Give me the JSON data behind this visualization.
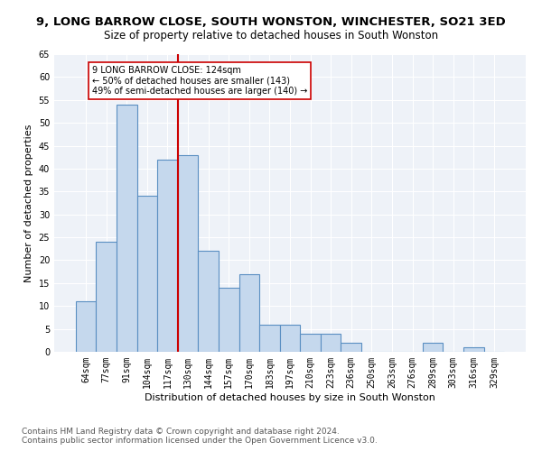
{
  "title": "9, LONG BARROW CLOSE, SOUTH WONSTON, WINCHESTER, SO21 3ED",
  "subtitle": "Size of property relative to detached houses in South Wonston",
  "xlabel": "Distribution of detached houses by size in South Wonston",
  "ylabel": "Number of detached properties",
  "categories": [
    "64sqm",
    "77sqm",
    "91sqm",
    "104sqm",
    "117sqm",
    "130sqm",
    "144sqm",
    "157sqm",
    "170sqm",
    "183sqm",
    "197sqm",
    "210sqm",
    "223sqm",
    "236sqm",
    "250sqm",
    "263sqm",
    "276sqm",
    "289sqm",
    "303sqm",
    "316sqm",
    "329sqm"
  ],
  "values": [
    11,
    24,
    54,
    34,
    42,
    43,
    22,
    14,
    17,
    6,
    6,
    4,
    4,
    2,
    0,
    0,
    0,
    2,
    0,
    1,
    0
  ],
  "bar_color": "#c5d8ed",
  "bar_edge_color": "#5a8fc2",
  "bar_edge_width": 0.8,
  "vline_x_index": 4.5,
  "vline_color": "#cc0000",
  "annotation_text": "9 LONG BARROW CLOSE: 124sqm\n← 50% of detached houses are smaller (143)\n49% of semi-detached houses are larger (140) →",
  "annotation_box_color": "#ffffff",
  "annotation_box_edge": "#cc0000",
  "ylim": [
    0,
    65
  ],
  "yticks": [
    0,
    5,
    10,
    15,
    20,
    25,
    30,
    35,
    40,
    45,
    50,
    55,
    60,
    65
  ],
  "footer1": "Contains HM Land Registry data © Crown copyright and database right 2024.",
  "footer2": "Contains public sector information licensed under the Open Government Licence v3.0.",
  "bg_color": "#ffffff",
  "plot_bg_color": "#eef2f8",
  "grid_color": "#ffffff",
  "title_fontsize": 9.5,
  "subtitle_fontsize": 8.5,
  "label_fontsize": 8,
  "tick_fontsize": 7,
  "footer_fontsize": 6.5,
  "annot_fontsize": 7
}
